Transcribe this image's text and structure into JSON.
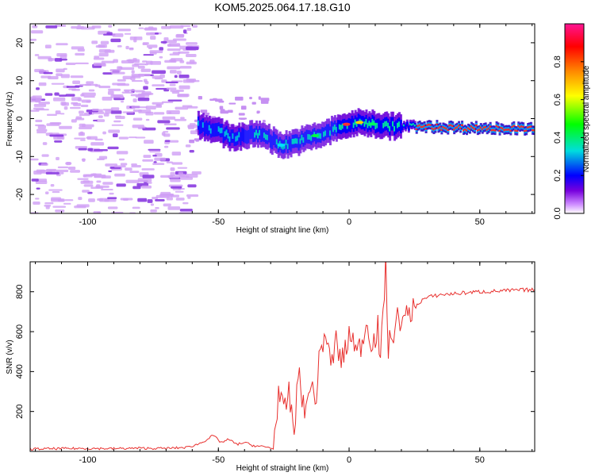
{
  "chart_data": [
    {
      "type": "heatmap",
      "title": "KOM5.2025.064.17.18.G10",
      "xlabel": "Height of straight line (km)",
      "ylabel": "Frequency (Hz)",
      "xlim": [
        -122,
        71
      ],
      "ylim": [
        -25,
        25
      ],
      "xticks": [
        "-100",
        "-50",
        "0",
        "50"
      ],
      "yticks": [
        "20",
        "10",
        "0",
        "-10",
        "-20"
      ],
      "colorbar": {
        "label": "Normalized spectral amplitude",
        "range": [
          0,
          1
        ],
        "ticks": [
          "0.0",
          "0.2",
          "0.4",
          "0.6",
          "0.8"
        ],
        "colors": [
          "#ffffff",
          "#cc88ff",
          "#7700dd",
          "#0000ff",
          "#00dddd",
          "#00ff00",
          "#ffff00",
          "#ff8800",
          "#ff0000",
          "#ff1493"
        ]
      },
      "ridge": [
        {
          "x": -58,
          "y": -1.5
        },
        {
          "x": -50,
          "y": -3.5
        },
        {
          "x": -45,
          "y": -5
        },
        {
          "x": -40,
          "y": -4.5
        },
        {
          "x": -35,
          "y": -4
        },
        {
          "x": -32,
          "y": -4.5
        },
        {
          "x": -28,
          "y": -6.5
        },
        {
          "x": -25,
          "y": -7
        },
        {
          "x": -20,
          "y": -6
        },
        {
          "x": -15,
          "y": -5
        },
        {
          "x": -10,
          "y": -4
        },
        {
          "x": -5,
          "y": -2.5
        },
        {
          "x": 0,
          "y": -1.5
        },
        {
          "x": 5,
          "y": -1
        },
        {
          "x": 10,
          "y": -1.5
        },
        {
          "x": 15,
          "y": -2
        },
        {
          "x": 20,
          "y": -2
        },
        {
          "x": 30,
          "y": -2.2
        },
        {
          "x": 40,
          "y": -2.3
        },
        {
          "x": 50,
          "y": -2.5
        },
        {
          "x": 60,
          "y": -2.6
        },
        {
          "x": 71,
          "y": -2.7
        }
      ]
    },
    {
      "type": "line",
      "title": "",
      "xlabel": "Height of straight line (km)",
      "ylabel": "SNR (v/v)",
      "xlim": [
        -122,
        71
      ],
      "ylim": [
        0,
        950
      ],
      "xticks": [
        "-100",
        "-50",
        "0",
        "50"
      ],
      "yticks": [
        "800",
        "600",
        "400",
        "200"
      ],
      "color": "#e8302e",
      "series": [
        {
          "points": [
            {
              "x": -122,
              "y": 12
            },
            {
              "x": -110,
              "y": 14
            },
            {
              "x": -100,
              "y": 15
            },
            {
              "x": -90,
              "y": 14
            },
            {
              "x": -80,
              "y": 16
            },
            {
              "x": -70,
              "y": 15
            },
            {
              "x": -62,
              "y": 20
            },
            {
              "x": -58,
              "y": 35
            },
            {
              "x": -55,
              "y": 55
            },
            {
              "x": -52,
              "y": 80
            },
            {
              "x": -49,
              "y": 45
            },
            {
              "x": -46,
              "y": 60
            },
            {
              "x": -43,
              "y": 35
            },
            {
              "x": -40,
              "y": 45
            },
            {
              "x": -37,
              "y": 30
            },
            {
              "x": -34,
              "y": 25
            },
            {
              "x": -31,
              "y": 20
            },
            {
              "x": -29,
              "y": 15
            },
            {
              "x": -27,
              "y": 300
            },
            {
              "x": -25,
              "y": 180
            },
            {
              "x": -23,
              "y": 290
            },
            {
              "x": -21,
              "y": 100
            },
            {
              "x": -19,
              "y": 430
            },
            {
              "x": -17,
              "y": 150
            },
            {
              "x": -15,
              "y": 360
            },
            {
              "x": -13,
              "y": 240
            },
            {
              "x": -11,
              "y": 500
            },
            {
              "x": -9,
              "y": 600
            },
            {
              "x": -7,
              "y": 420
            },
            {
              "x": -5,
              "y": 550
            },
            {
              "x": -3,
              "y": 450
            },
            {
              "x": -1,
              "y": 520
            },
            {
              "x": 1,
              "y": 600
            },
            {
              "x": 3,
              "y": 480
            },
            {
              "x": 5,
              "y": 560
            },
            {
              "x": 7,
              "y": 650
            },
            {
              "x": 9,
              "y": 530
            },
            {
              "x": 11,
              "y": 620
            },
            {
              "x": 12,
              "y": 420
            },
            {
              "x": 13,
              "y": 700
            },
            {
              "x": 14,
              "y": 940
            },
            {
              "x": 15,
              "y": 520
            },
            {
              "x": 17,
              "y": 600
            },
            {
              "x": 19,
              "y": 680
            },
            {
              "x": 21,
              "y": 640
            },
            {
              "x": 23,
              "y": 700
            },
            {
              "x": 25,
              "y": 720
            },
            {
              "x": 28,
              "y": 760
            },
            {
              "x": 31,
              "y": 775
            },
            {
              "x": 35,
              "y": 785
            },
            {
              "x": 40,
              "y": 790
            },
            {
              "x": 45,
              "y": 795
            },
            {
              "x": 50,
              "y": 800
            },
            {
              "x": 55,
              "y": 802
            },
            {
              "x": 60,
              "y": 805
            },
            {
              "x": 65,
              "y": 808
            },
            {
              "x": 71,
              "y": 810
            }
          ]
        }
      ]
    }
  ]
}
